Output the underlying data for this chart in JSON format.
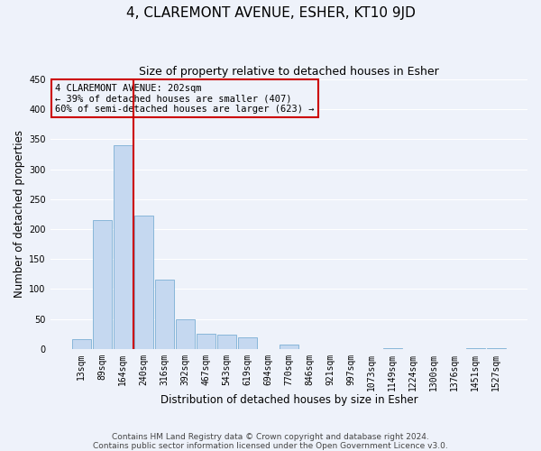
{
  "title": "4, CLAREMONT AVENUE, ESHER, KT10 9JD",
  "subtitle": "Size of property relative to detached houses in Esher",
  "xlabel": "Distribution of detached houses by size in Esher",
  "ylabel": "Number of detached properties",
  "bar_labels": [
    "13sqm",
    "89sqm",
    "164sqm",
    "240sqm",
    "316sqm",
    "392sqm",
    "467sqm",
    "543sqm",
    "619sqm",
    "694sqm",
    "770sqm",
    "846sqm",
    "921sqm",
    "997sqm",
    "1073sqm",
    "1149sqm",
    "1224sqm",
    "1300sqm",
    "1376sqm",
    "1451sqm",
    "1527sqm"
  ],
  "bar_values": [
    17,
    215,
    340,
    222,
    115,
    50,
    26,
    24,
    19,
    0,
    7,
    0,
    0,
    0,
    0,
    2,
    0,
    0,
    0,
    2,
    2
  ],
  "bar_color": "#c5d8f0",
  "bar_edge_color": "#7bafd4",
  "vline_x_idx": 2.5,
  "vline_color": "#cc0000",
  "box_text_line1": "4 CLAREMONT AVENUE: 202sqm",
  "box_text_line2": "← 39% of detached houses are smaller (407)",
  "box_text_line3": "60% of semi-detached houses are larger (623) →",
  "box_color": "#cc0000",
  "ylim": [
    0,
    450
  ],
  "yticks": [
    0,
    50,
    100,
    150,
    200,
    250,
    300,
    350,
    400,
    450
  ],
  "footer_line1": "Contains HM Land Registry data © Crown copyright and database right 2024.",
  "footer_line2": "Contains public sector information licensed under the Open Government Licence v3.0.",
  "background_color": "#eef2fa",
  "grid_color": "#ffffff",
  "title_fontsize": 11,
  "subtitle_fontsize": 9,
  "axis_label_fontsize": 8.5,
  "tick_fontsize": 7,
  "annotation_fontsize": 7.5,
  "footer_fontsize": 6.5
}
